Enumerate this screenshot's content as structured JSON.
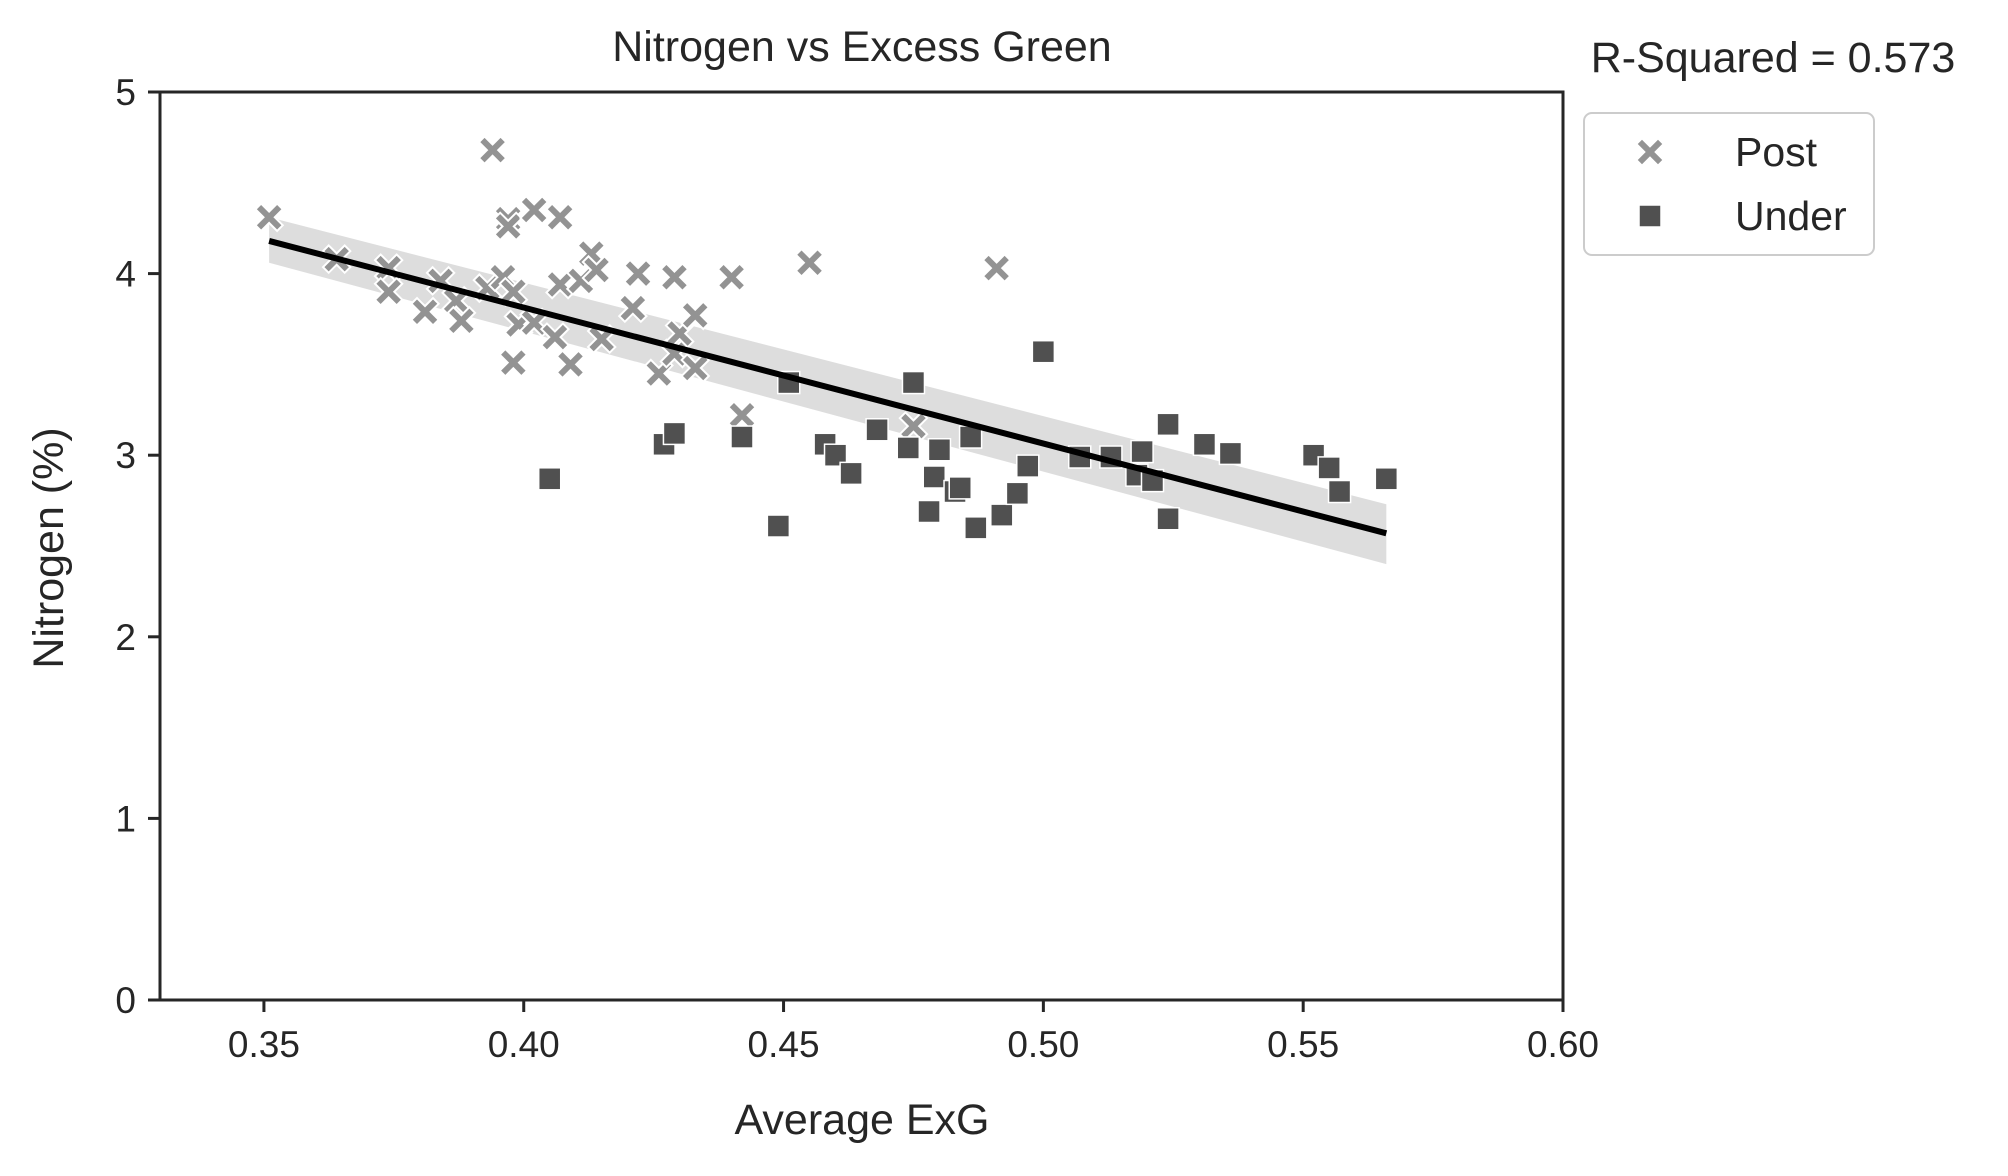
{
  "chart_data": {
    "type": "scatter",
    "title": "Nitrogen vs Excess Green",
    "annotation": "R-Squared = 0.573",
    "xlabel": "Average ExG",
    "ylabel": "Nitrogen (%)",
    "xlim": [
      0.33,
      0.6
    ],
    "ylim": [
      0,
      5
    ],
    "xticks": [
      0.35,
      0.4,
      0.45,
      0.5,
      0.55,
      0.6
    ],
    "xtick_labels": [
      "0.35",
      "0.40",
      "0.45",
      "0.50",
      "0.55",
      "0.60"
    ],
    "yticks": [
      0,
      1,
      2,
      3,
      4,
      5
    ],
    "ytick_labels": [
      "0",
      "1",
      "2",
      "3",
      "4",
      "5"
    ],
    "grid": false,
    "legend_position": "outside-right-top",
    "series": [
      {
        "name": "Post",
        "marker": "x",
        "color": "#939393",
        "points": [
          [
            0.351,
            4.31
          ],
          [
            0.364,
            4.08
          ],
          [
            0.374,
            4.03
          ],
          [
            0.374,
            3.9
          ],
          [
            0.381,
            3.79
          ],
          [
            0.384,
            3.96
          ],
          [
            0.387,
            3.85
          ],
          [
            0.388,
            3.74
          ],
          [
            0.393,
            3.92
          ],
          [
            0.394,
            4.68
          ],
          [
            0.396,
            3.98
          ],
          [
            0.397,
            4.3
          ],
          [
            0.397,
            4.26
          ],
          [
            0.398,
            3.9
          ],
          [
            0.398,
            3.51
          ],
          [
            0.399,
            3.72
          ],
          [
            0.402,
            4.35
          ],
          [
            0.402,
            3.73
          ],
          [
            0.406,
            3.65
          ],
          [
            0.407,
            4.31
          ],
          [
            0.407,
            3.94
          ],
          [
            0.409,
            3.5
          ],
          [
            0.411,
            3.96
          ],
          [
            0.413,
            4.11
          ],
          [
            0.414,
            4.02
          ],
          [
            0.415,
            3.64
          ],
          [
            0.421,
            3.81
          ],
          [
            0.422,
            4.0
          ],
          [
            0.426,
            3.45
          ],
          [
            0.429,
            3.98
          ],
          [
            0.429,
            3.56
          ],
          [
            0.43,
            3.67
          ],
          [
            0.433,
            3.77
          ],
          [
            0.433,
            3.48
          ],
          [
            0.44,
            3.98
          ],
          [
            0.442,
            3.22
          ],
          [
            0.455,
            4.06
          ],
          [
            0.475,
            3.16
          ],
          [
            0.491,
            4.03
          ]
        ]
      },
      {
        "name": "Under",
        "marker": "square",
        "color": "#505050",
        "points": [
          [
            0.405,
            2.87
          ],
          [
            0.427,
            3.06
          ],
          [
            0.429,
            3.12
          ],
          [
            0.442,
            3.1
          ],
          [
            0.449,
            2.61
          ],
          [
            0.451,
            3.4
          ],
          [
            0.458,
            3.06
          ],
          [
            0.46,
            3.0
          ],
          [
            0.463,
            2.9
          ],
          [
            0.468,
            3.14
          ],
          [
            0.474,
            3.04
          ],
          [
            0.475,
            3.4
          ],
          [
            0.478,
            2.69
          ],
          [
            0.479,
            2.88
          ],
          [
            0.48,
            3.03
          ],
          [
            0.483,
            2.8
          ],
          [
            0.484,
            2.82
          ],
          [
            0.486,
            3.1
          ],
          [
            0.487,
            2.6
          ],
          [
            0.492,
            2.67
          ],
          [
            0.495,
            2.79
          ],
          [
            0.497,
            2.94
          ],
          [
            0.5,
            3.57
          ],
          [
            0.507,
            2.99
          ],
          [
            0.513,
            2.99
          ],
          [
            0.518,
            2.89
          ],
          [
            0.519,
            3.02
          ],
          [
            0.521,
            2.86
          ],
          [
            0.524,
            3.17
          ],
          [
            0.524,
            2.65
          ],
          [
            0.531,
            3.06
          ],
          [
            0.536,
            3.01
          ],
          [
            0.552,
            3.0
          ],
          [
            0.555,
            2.93
          ],
          [
            0.557,
            2.8
          ],
          [
            0.566,
            2.87
          ]
        ]
      }
    ],
    "regression": {
      "color": "#000000",
      "band_color": "#d9d9d9",
      "x": [
        0.351,
        0.566
      ],
      "y": [
        4.18,
        2.57
      ],
      "band_low": [
        4.06,
        2.4
      ],
      "band_high": [
        4.31,
        2.73
      ]
    }
  }
}
